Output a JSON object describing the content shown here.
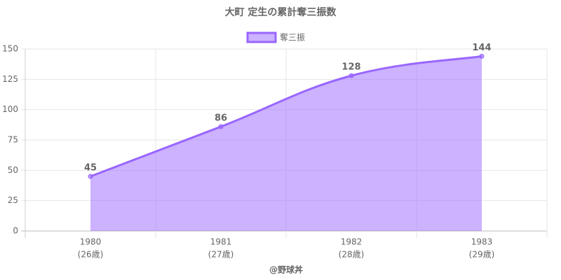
{
  "chart_data": {
    "type": "area",
    "title": "大町 定生の累計奪三振数",
    "x_label": "@野球丼",
    "categories": [
      "1980",
      "1981",
      "1982",
      "1983"
    ],
    "age_labels": [
      "(26歳)",
      "(27歳)",
      "(28歳)",
      "(29歳)"
    ],
    "series": [
      {
        "name": "奪三振",
        "color": "#9966ff",
        "values": [
          45,
          86,
          128,
          144
        ]
      }
    ],
    "ylim": [
      0,
      150
    ],
    "yticks": [
      0,
      25,
      50,
      75,
      100,
      125,
      150
    ],
    "grid": true,
    "legend": "top"
  }
}
